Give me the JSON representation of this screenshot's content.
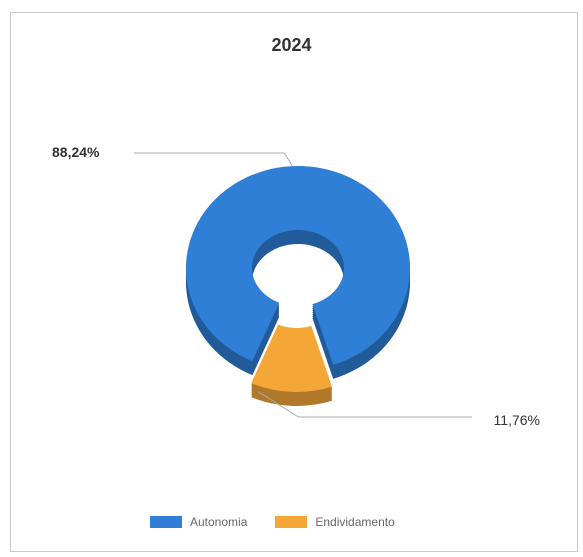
{
  "chart_data": {
    "type": "pie",
    "style": "3d-donut",
    "title": "2024",
    "slices": [
      {
        "label": "Autonomia",
        "value": 88.24,
        "display": "88,24%",
        "color": "#2f7fd6"
      },
      {
        "label": "Endividamento",
        "value": 11.76,
        "display": "11,76%",
        "color": "#f4a737"
      }
    ],
    "legend_position": "bottom"
  }
}
